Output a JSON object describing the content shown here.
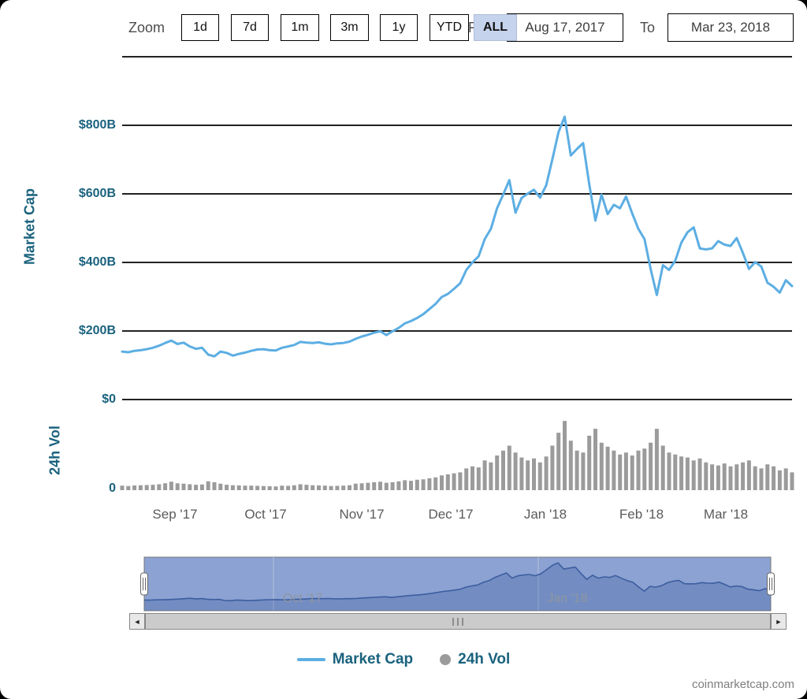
{
  "toolbar": {
    "zoom_label": "Zoom",
    "range_buttons": [
      {
        "label": "1d",
        "selected": false
      },
      {
        "label": "7d",
        "selected": false
      },
      {
        "label": "1m",
        "selected": false
      },
      {
        "label": "3m",
        "selected": false
      },
      {
        "label": "1y",
        "selected": false
      },
      {
        "label": "YTD",
        "selected": false
      },
      {
        "label": "ALL",
        "selected": true
      }
    ],
    "from_label": "From",
    "from_value": "Aug 17, 2017",
    "to_label": "To",
    "to_value": "Mar 23, 2018"
  },
  "watermark": "coinmarketcap.com",
  "colors": {
    "market_cap_line": "#5caee3",
    "volume_bar": "#9b9b9b",
    "axis_text": "#1a627e",
    "navigator_fill": "#8ba2d2",
    "navigator_line": "#3c5d9f",
    "selected_button_bg": "#c6d3ec"
  },
  "chart_data": {
    "type": "line",
    "title": "",
    "x_range": [
      "Aug 17, 2017",
      "Mar 23, 2018"
    ],
    "point_interval_days": 2,
    "x_tick_labels": [
      "Sep '17",
      "Oct '17",
      "Nov '17",
      "Dec '17",
      "Jan '18",
      "Feb '18",
      "Mar '18"
    ],
    "y_axis_main": {
      "title": "Market Cap",
      "unit": "$B",
      "max": 1000,
      "ticks": [
        "$800B",
        "$600B",
        "$400B",
        "$200B",
        "$0"
      ]
    },
    "y_axis_vol": {
      "title": "24h Vol",
      "unit": "$B",
      "max": 78,
      "ticks": [
        "0"
      ]
    },
    "navigator_labels": [
      "Oct '17",
      "Jan '18"
    ],
    "legend_position": "bottom-center",
    "grid": true,
    "series": [
      {
        "name": "Market Cap",
        "type": "line",
        "color": "#5caee3",
        "unit": "$B",
        "values": [
          140,
          138,
          142,
          144,
          147,
          151,
          157,
          165,
          172,
          162,
          166,
          155,
          148,
          151,
          131,
          126,
          140,
          136,
          128,
          133,
          137,
          142,
          146,
          147,
          144,
          143,
          151,
          155,
          159,
          168,
          166,
          165,
          167,
          163,
          161,
          164,
          165,
          169,
          177,
          184,
          189,
          195,
          199,
          188,
          199,
          209,
          222,
          229,
          238,
          249,
          264,
          279,
          299,
          308,
          323,
          339,
          378,
          400,
          418,
          468,
          498,
          558,
          598,
          640,
          545,
          588,
          601,
          612,
          589,
          625,
          701,
          780,
          825,
          712,
          731,
          748,
          628,
          522,
          598,
          541,
          568,
          558,
          592,
          543,
          498,
          468,
          381,
          305,
          392,
          378,
          405,
          458,
          488,
          502,
          441,
          438,
          441,
          462,
          452,
          448,
          471,
          428,
          381,
          401,
          388,
          341,
          329,
          312,
          348,
          331
        ]
      },
      {
        "name": "24h Vol",
        "type": "column",
        "color": "#9b9b9b",
        "unit": "$B",
        "values": [
          4.5,
          4.2,
          4.8,
          5,
          5.2,
          5.5,
          6,
          7,
          8.5,
          7,
          6.5,
          6,
          5.5,
          5.8,
          9,
          8,
          6.5,
          5.5,
          5,
          4.8,
          4.5,
          4.6,
          4.4,
          4.2,
          4,
          3.8,
          4.5,
          4.4,
          5,
          6,
          5.5,
          5,
          4.8,
          4.5,
          4.2,
          4.4,
          4.6,
          5,
          6.5,
          7,
          7.5,
          8,
          8.5,
          7.5,
          8,
          9,
          10,
          9.5,
          10.5,
          11,
          12,
          13,
          15,
          16,
          17,
          18,
          22,
          24,
          23,
          30,
          28,
          35,
          40,
          45,
          38,
          33,
          30,
          32,
          28,
          34,
          45,
          58,
          70,
          50,
          40,
          38,
          55,
          62,
          48,
          44,
          40,
          36,
          38,
          35,
          40,
          42,
          48,
          62,
          45,
          38,
          36,
          34,
          33,
          30,
          32,
          28,
          26,
          25,
          27,
          24,
          26,
          28,
          30,
          24,
          22,
          26,
          24,
          20,
          22,
          18
        ]
      }
    ]
  }
}
